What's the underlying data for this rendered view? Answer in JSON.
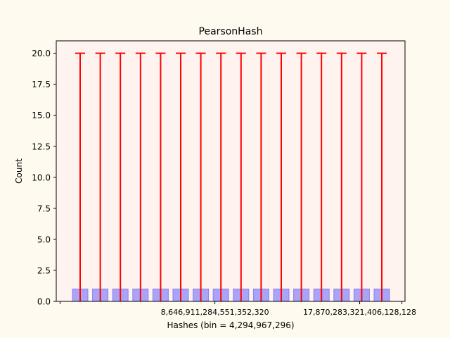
{
  "chart_data": {
    "type": "bar",
    "title": "PearsonHash",
    "xlabel": "Hashes (bin = 4,294,967,296)",
    "ylabel": "Count",
    "bin_count": 16,
    "values": [
      1,
      1,
      1,
      1,
      1,
      1,
      1,
      1,
      1,
      1,
      1,
      1,
      1,
      1,
      1,
      1
    ],
    "error_upper": [
      20,
      20,
      20,
      20,
      20,
      20,
      20,
      20,
      20,
      20,
      20,
      20,
      20,
      20,
      20,
      20
    ],
    "error_lower": [
      0,
      0,
      0,
      0,
      0,
      0,
      0,
      0,
      0,
      0,
      0,
      0,
      0,
      0,
      0,
      0
    ],
    "ylim": [
      0,
      21
    ],
    "y_ticks": [
      "0.0",
      "2.5",
      "5.0",
      "7.5",
      "10.0",
      "12.5",
      "15.0",
      "17.5",
      "20.0"
    ],
    "y_tick_values": [
      0,
      2.5,
      5,
      7.5,
      10,
      12.5,
      15,
      17.5,
      20
    ],
    "x_tick_labels": [
      "8,646,911,284,551,352,320",
      "17,870,283,321,406,128,128"
    ],
    "x_tick_label_bins": [
      6.7,
      13.9
    ],
    "bar_color": "#a9a4f5",
    "bar_edge_color": "#8a82f0",
    "error_color": "#ff0000",
    "plot_background": "#fff3ef",
    "figure_background": "#fefaf0",
    "grid": false,
    "legend": "none"
  }
}
